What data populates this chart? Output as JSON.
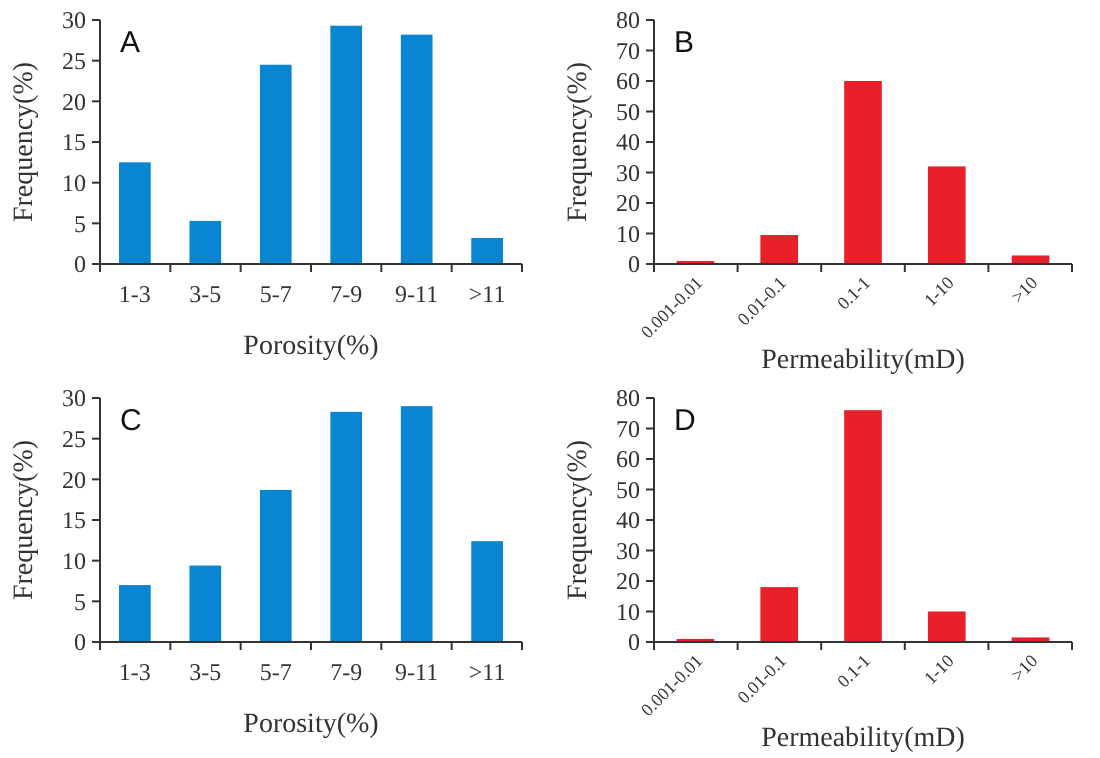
{
  "chart_data": [
    {
      "type": "bar",
      "title": "A",
      "categories": [
        "1-3",
        "3-5",
        "5-7",
        "7-9",
        "9-11",
        ">11"
      ],
      "xlabel": "Porosity(%)",
      "ylabel": "Frequency(%)",
      "ylim": [
        0,
        30
      ],
      "yticks": [
        0,
        5,
        10,
        15,
        20,
        25,
        30
      ],
      "series": [
        {
          "color": "#0a85d2",
          "values": [
            12.5,
            5.3,
            24.5,
            29.3,
            28.2,
            3.2
          ]
        }
      ]
    },
    {
      "type": "bar",
      "title": "B",
      "categories": [
        "0.001-0.01",
        "0.01-0.1",
        "0.1-1",
        "1-10",
        ">10"
      ],
      "xlabel": "Permeability(mD)",
      "ylabel": "Frequency(%)",
      "ylim": [
        0,
        80
      ],
      "yticks": [
        0,
        10,
        20,
        30,
        40,
        50,
        60,
        70,
        80
      ],
      "series": [
        {
          "color": "#e8202a",
          "values": [
            1,
            9.5,
            60,
            32,
            2.8
          ]
        }
      ]
    },
    {
      "type": "bar",
      "title": "C",
      "categories": [
        "1-3",
        "3-5",
        "5-7",
        "7-9",
        "9-11",
        ">11"
      ],
      "xlabel": "Porosity(%)",
      "ylabel": "Frequency(%)",
      "ylim": [
        0,
        30
      ],
      "yticks": [
        0,
        5,
        10,
        15,
        20,
        25,
        30
      ],
      "series": [
        {
          "color": "#0a85d2",
          "values": [
            7,
            9.4,
            18.7,
            28.3,
            29,
            12.4
          ]
        }
      ]
    },
    {
      "type": "bar",
      "title": "D",
      "categories": [
        "0.001-0.01",
        "0.01-0.1",
        "0.1-1",
        "1-10",
        ">10"
      ],
      "xlabel": "Permeability(mD)",
      "ylabel": "Frequency(%)",
      "ylim": [
        0,
        80
      ],
      "yticks": [
        0,
        10,
        20,
        30,
        40,
        50,
        60,
        70,
        80
      ],
      "series": [
        {
          "color": "#e8202a",
          "values": [
            1,
            18,
            76,
            10,
            1.5
          ]
        }
      ]
    }
  ]
}
